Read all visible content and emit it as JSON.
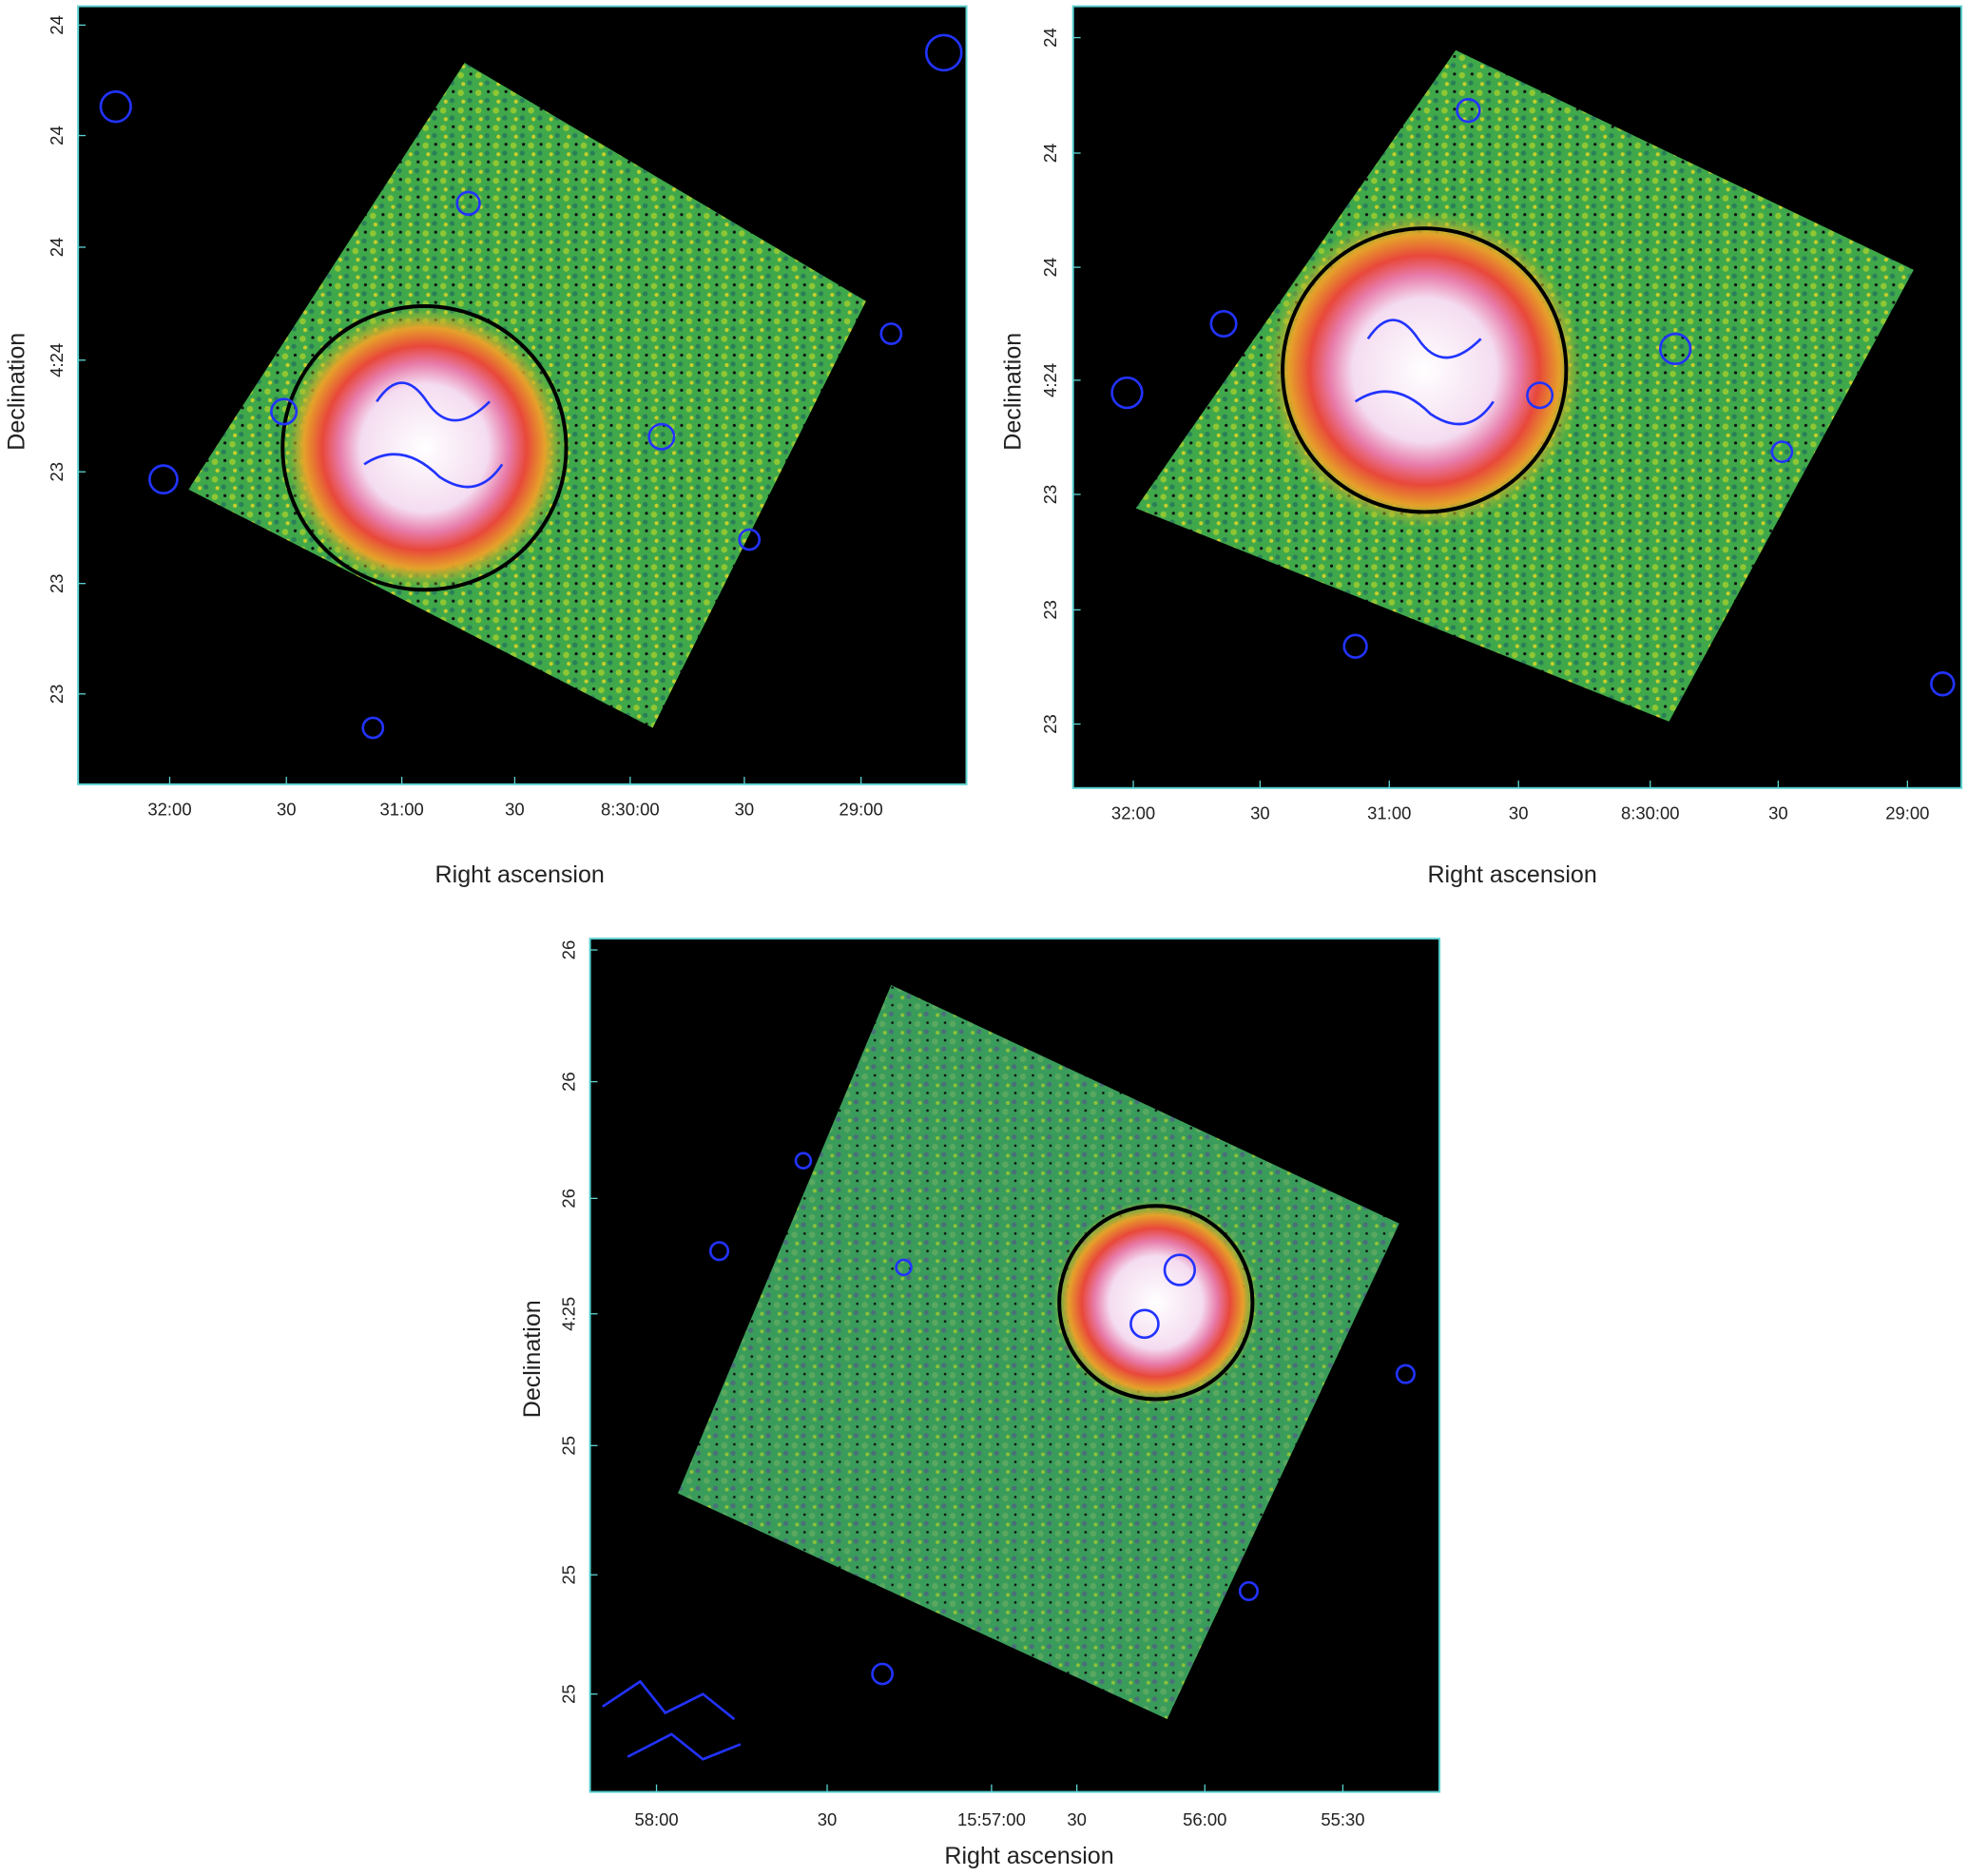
{
  "panels": [
    {
      "yticks": [
        "24",
        "24",
        "24",
        "4:24",
        "23",
        "23",
        "23"
      ],
      "xticks": [
        "32:00",
        "30",
        "31:00",
        "30",
        "8:30:00",
        "30",
        "29:00"
      ],
      "xlabel": "Right ascension",
      "ylabel": "Declination"
    },
    {
      "yticks": [
        "24",
        "24",
        "24",
        "4:24",
        "23",
        "23",
        "23"
      ],
      "xticks": [
        "32:00",
        "30",
        "31:00",
        "30",
        "8:30:00",
        "30",
        "29:00"
      ],
      "xlabel": "Right ascension",
      "ylabel": "Declination"
    },
    {
      "yticks": [
        "26",
        "26",
        "26",
        "4:25",
        "25",
        "25",
        "25"
      ],
      "xticks": [
        "58:00",
        "30",
        "15:57:00",
        "30",
        "56:00",
        "55:30"
      ],
      "xlabel": "Right ascension",
      "ylabel": "Declination"
    }
  ]
}
